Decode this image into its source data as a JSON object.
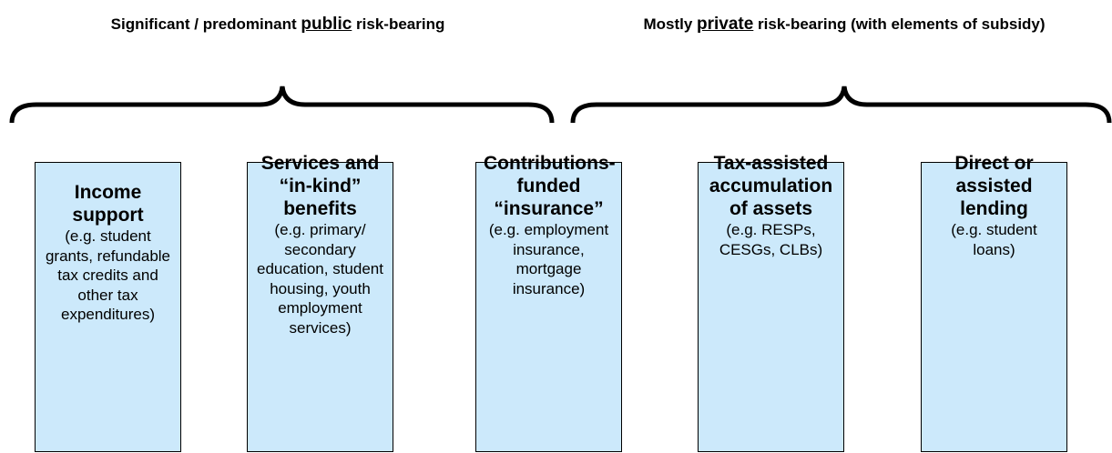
{
  "headers": [
    {
      "before": "Significant / predominant ",
      "emphasis": "public",
      "after": " risk-bearing"
    },
    {
      "before": "Mostly ",
      "emphasis": "private",
      "after": " risk-bearing (with elements of subsidy)"
    }
  ],
  "boxes": [
    {
      "title": "Income support",
      "detail": "(e.g. student grants, refundable tax credits and other tax expenditures)"
    },
    {
      "title": "Services and “in-kind” benefits",
      "detail": "(e.g. primary/ secondary education, student housing, youth employment services)"
    },
    {
      "title": "Contributions-funded “insurance”",
      "detail": "(e.g. employment insurance, mortgage insurance)"
    },
    {
      "title": "Tax-assisted accumulation of assets",
      "detail": "(e.g. RESPs, CESGs, CLBs)"
    },
    {
      "title": "Direct or assisted lending",
      "detail": "(e.g. student loans)"
    }
  ]
}
